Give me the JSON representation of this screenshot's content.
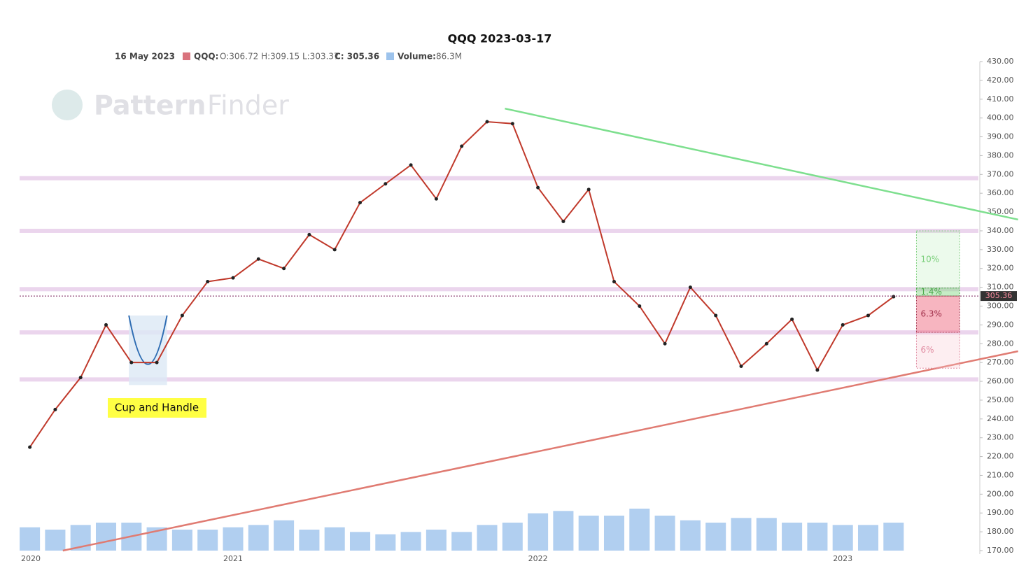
{
  "chart_data": {
    "type": "line",
    "title": "QQQ 2023-03-17",
    "info": {
      "date": "16 May 2023",
      "symbol": "QQQ:",
      "ohl": "O:306.72 H:309.15 L:303.37",
      "close": "C: 305.36",
      "volume_label": "Volume:",
      "volume": "86.3M"
    },
    "watermark": {
      "bold": "Pattern",
      "light": "Finder"
    },
    "categories": [
      "2020",
      null,
      null,
      null,
      null,
      null,
      null,
      null,
      "2021",
      null,
      null,
      null,
      null,
      null,
      null,
      null,
      null,
      null,
      null,
      null,
      "2022",
      null,
      null,
      null,
      null,
      null,
      null,
      null,
      null,
      null,
      null,
      null,
      "2023",
      null,
      null
    ],
    "series": [
      {
        "name": "QQQ",
        "color": "#c0392b",
        "values": [
          225,
          245,
          262,
          290,
          270,
          270,
          295,
          313,
          315,
          325,
          320,
          338,
          330,
          355,
          365,
          375,
          357,
          385,
          398,
          397,
          363,
          345,
          362,
          313,
          300,
          280,
          310,
          295,
          268,
          280,
          293,
          266,
          290,
          295,
          305
        ]
      },
      {
        "name": "Volume",
        "color": "#9dc3ec",
        "axis": "y2",
        "values": [
          50,
          45,
          55,
          60,
          60,
          50,
          45,
          45,
          50,
          55,
          65,
          45,
          50,
          40,
          35,
          40,
          45,
          40,
          55,
          60,
          80,
          85,
          75,
          75,
          90,
          75,
          65,
          60,
          70,
          70,
          60,
          60,
          55,
          55,
          60
        ]
      }
    ],
    "ylim": [
      170,
      430
    ],
    "yticks": [
      {
        "value": 170,
        "label": "170.00"
      },
      {
        "value": 180,
        "label": "180.00"
      },
      {
        "value": 190,
        "label": "190.00"
      },
      {
        "value": 200,
        "label": "200.00"
      },
      {
        "value": 210,
        "label": "210.00"
      },
      {
        "value": 220,
        "label": "220.00"
      },
      {
        "value": 230,
        "label": "230.00"
      },
      {
        "value": 240,
        "label": "240.00"
      },
      {
        "value": 250,
        "label": "250.00"
      },
      {
        "value": 260,
        "label": "260.00"
      },
      {
        "value": 270,
        "label": "270.00"
      },
      {
        "value": 280,
        "label": "280.00"
      },
      {
        "value": 290,
        "label": "290.00"
      },
      {
        "value": 300,
        "label": "300.00"
      },
      {
        "value": 310,
        "label": "310.00"
      },
      {
        "value": 320,
        "label": "320.00"
      },
      {
        "value": 330,
        "label": "330.00"
      },
      {
        "value": 340,
        "label": "340.00"
      },
      {
        "value": 350,
        "label": "350.00"
      },
      {
        "value": 360,
        "label": "360.00"
      },
      {
        "value": 370,
        "label": "370.00"
      },
      {
        "value": 380,
        "label": "380.00"
      },
      {
        "value": 390,
        "label": "390.00"
      },
      {
        "value": 400,
        "label": "400.00"
      },
      {
        "value": 410,
        "label": "410.00"
      },
      {
        "value": 420,
        "label": "420.00"
      },
      {
        "value": 430,
        "label": "430.00"
      }
    ],
    "y2lim": [
      0,
      300
    ],
    "last_price": {
      "value": 305.36,
      "label": "305.36"
    },
    "levels": [
      261,
      286,
      309,
      340,
      368
    ],
    "trendlines": [
      {
        "color": "#7ddf8e",
        "from": [
          18.7,
          405
        ],
        "to": [
          38.9,
          346
        ]
      },
      {
        "color": "#e07b72",
        "from": [
          1.3,
          170
        ],
        "to": [
          38.9,
          276
        ]
      }
    ],
    "pattern": {
      "label": "Cup and Handle",
      "from": 3.9,
      "to": 5.4,
      "low": 258,
      "high": 295
    },
    "trade": {
      "from": 34.9,
      "to": 36.6,
      "target": 340,
      "mid": 309.6,
      "entry": 305.36,
      "stop": 286,
      "low": 267,
      "labels": [
        "10%",
        "1.4%",
        "6.3%",
        "6%"
      ]
    }
  }
}
